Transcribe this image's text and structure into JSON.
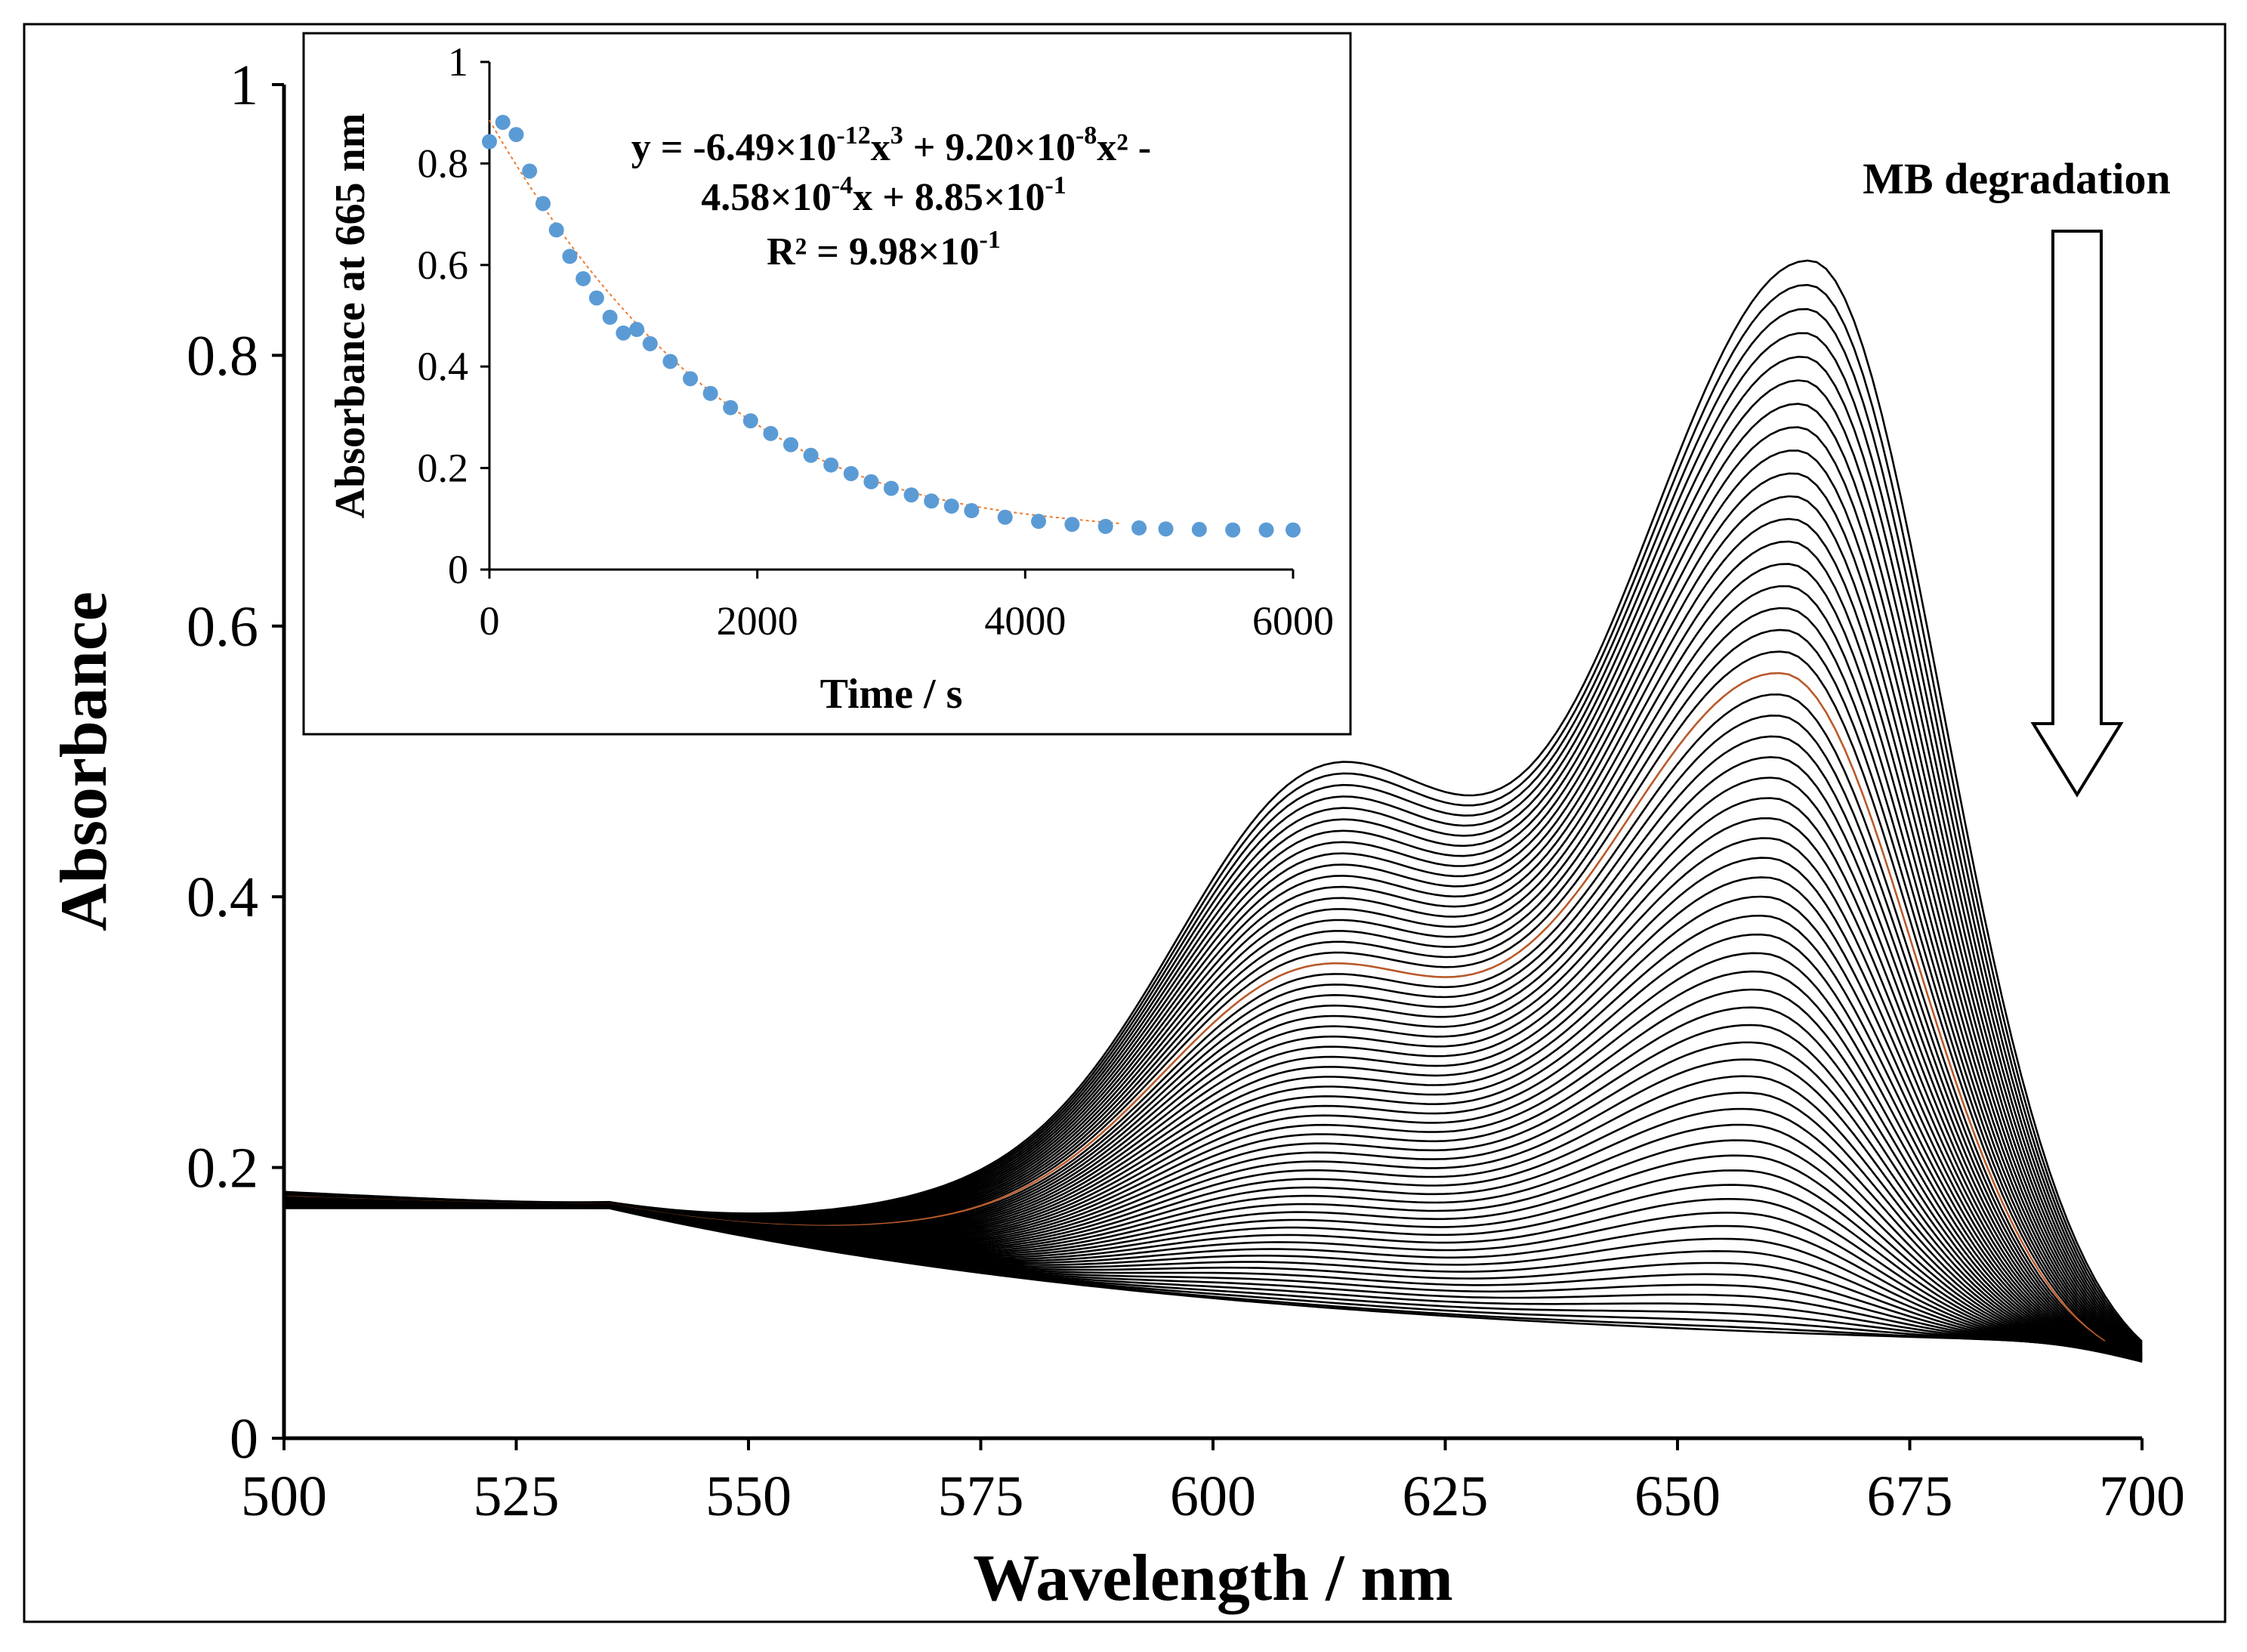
{
  "chart_data": [
    {
      "type": "line",
      "xlabel": "Wavelength / nm",
      "ylabel": "Absorbance",
      "xlim": [
        500,
        700
      ],
      "ylim": [
        0,
        1
      ],
      "x_ticks": [
        "500",
        "525",
        "550",
        "575",
        "600",
        "625",
        "650",
        "675",
        "700"
      ],
      "y_ticks": [
        "0",
        "0.2",
        "0.4",
        "0.6",
        "0.8",
        "1"
      ],
      "grid": false,
      "series_description": "61 UV-Vis absorption spectra recorded during MB degradation; main band peak near 664 nm decreasing from about 0.885 to about 0.075, shoulder near 612 nm, isosbestic-like crossing near 535 nm",
      "series_count": 61,
      "peak_absorbance_first": 0.885,
      "peak_absorbance_last": 0.075,
      "series_color": "#000000",
      "highlight_color": "#b85a2b",
      "annotation": "MB degradation"
    },
    {
      "type": "scatter",
      "xlabel": "Time / s",
      "ylabel": "Absorbance at 665 nm",
      "xlim": [
        0,
        6000
      ],
      "ylim": [
        0,
        1
      ],
      "x_ticks": [
        "0",
        "2000",
        "4000",
        "6000"
      ],
      "y_ticks": [
        "0",
        "0.2",
        "0.4",
        "0.6",
        "0.8",
        "1"
      ],
      "point_color": "#5b9bd5",
      "fit_color": "#ed7d31",
      "x": [
        0,
        100,
        200,
        300,
        400,
        500,
        600,
        700,
        800,
        900,
        1000,
        1100,
        1200,
        1350,
        1500,
        1650,
        1800,
        1950,
        2100,
        2250,
        2400,
        2550,
        2700,
        2850,
        3000,
        3150,
        3300,
        3450,
        3600,
        3850,
        4100,
        4350,
        4600,
        4850,
        5050,
        5300,
        5550,
        5800,
        6000
      ],
      "y": [
        0.843,
        0.881,
        0.857,
        0.785,
        0.721,
        0.669,
        0.617,
        0.573,
        0.535,
        0.497,
        0.466,
        0.473,
        0.445,
        0.41,
        0.376,
        0.347,
        0.319,
        0.293,
        0.268,
        0.246,
        0.225,
        0.206,
        0.189,
        0.173,
        0.16,
        0.147,
        0.135,
        0.125,
        0.116,
        0.103,
        0.095,
        0.089,
        0.085,
        0.082,
        0.08,
        0.079,
        0.078,
        0.078,
        0.078
      ],
      "fit_equation_line1": "y = -6.49×10",
      "fit_exp1": "-12",
      "fit_text1b": "x",
      "fit_exp2": "3",
      "fit_text1c": " + 9.20×10",
      "fit_exp3": "-8",
      "fit_text1d": "x² -",
      "fit_equation_line2a": "4.58×10",
      "fit_exp4": "-4",
      "fit_text2b": "x + 8.85×10",
      "fit_exp5": "-1",
      "fit_r2a": "R² = 9.98×10",
      "fit_exp6": "-1",
      "fit_coefficients": {
        "a3": -6.49e-12,
        "a2": 9.2e-08,
        "a1": -0.000458,
        "a0": 0.885
      },
      "r_squared": 0.998
    }
  ]
}
